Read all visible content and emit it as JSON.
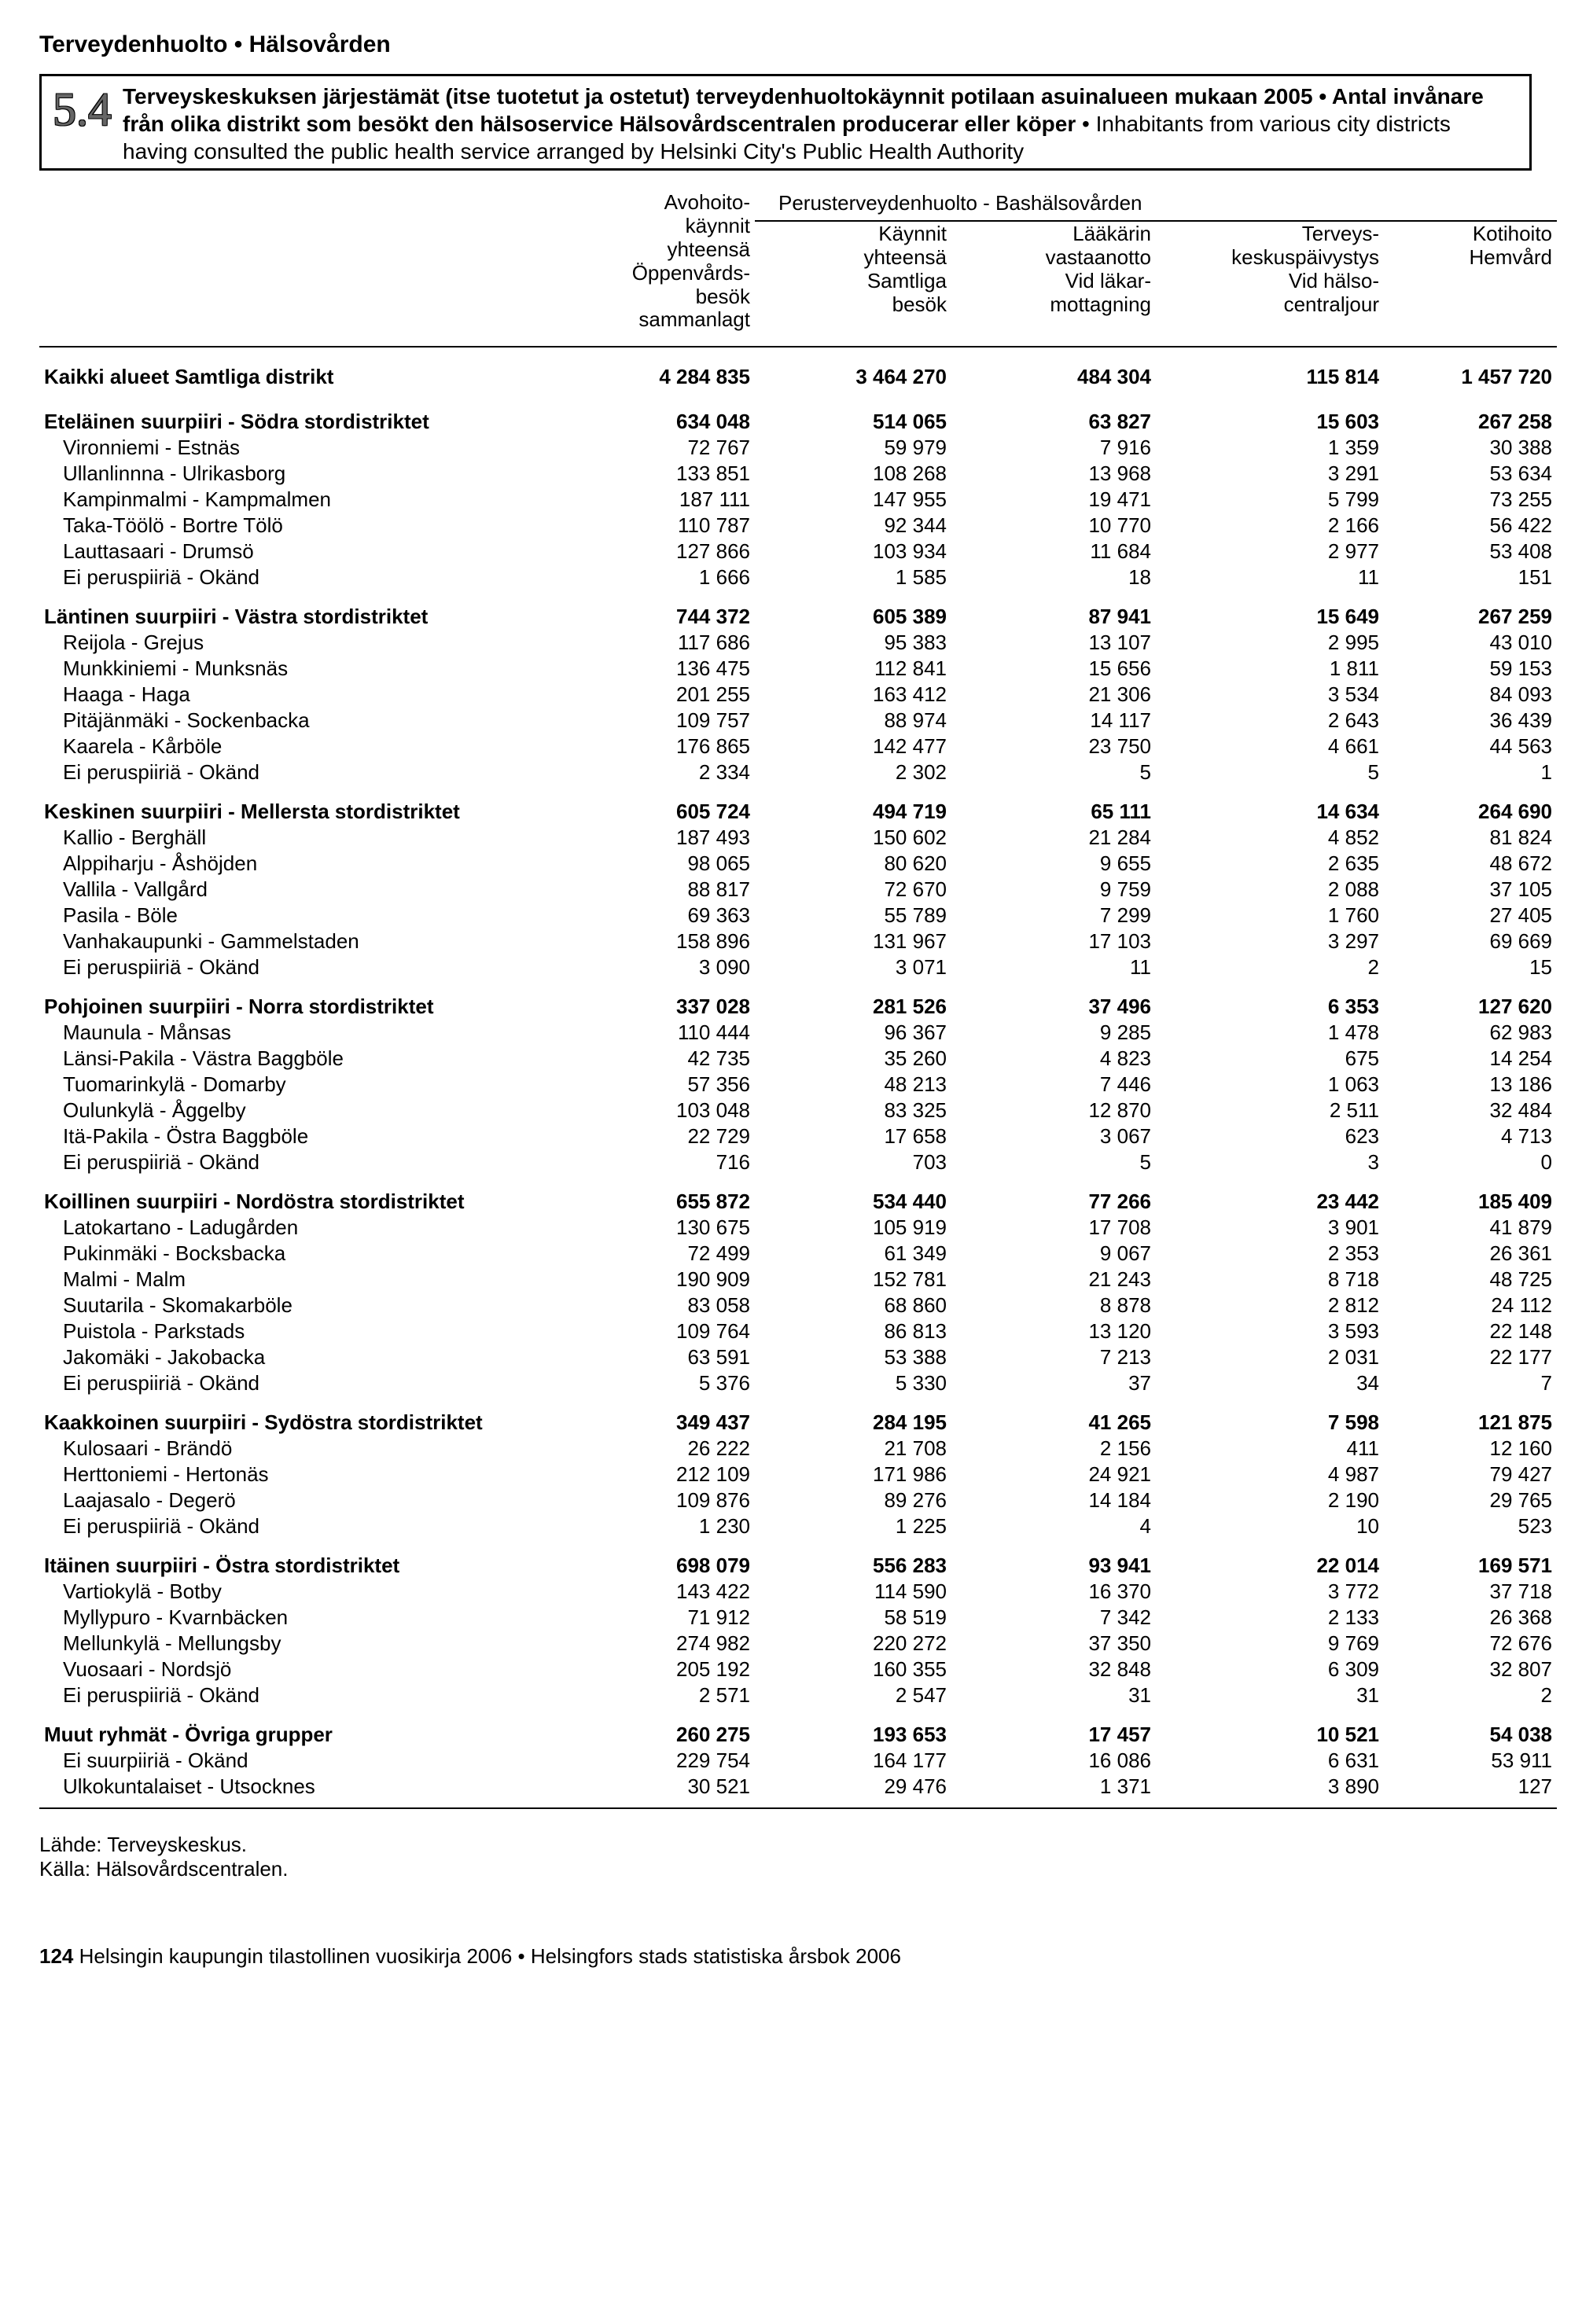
{
  "page": {
    "header": "Terveydenhuolto • Hälsovården",
    "section_number": "5.4",
    "title_bold1": "Terveyskeskuksen järjestämät (itse tuotetut ja ostetut) terveydenhuoltokäynnit potilaan asuinalueen mukaan 2005",
    "title_bold2": "Antal invånare från olika distrikt som besökt den hälsoservice Hälsovårdscentralen producerar eller köper",
    "title_plain": "Inhabitants from various city districts having consulted the public health service arranged by Helsinki City's Public Health Authority",
    "source_fi": "Lähde: Terveyskeskus.",
    "source_sv": "Källa: Hälsovårdscentralen.",
    "footer_page": "124",
    "footer_text": "Helsingin kaupungin tilastollinen vuosikirja 2006 • Helsingfors stads statistiska årsbok 2006"
  },
  "columns": {
    "c1": "Avohoito-\nkäynnit\nyhteensä\nÖppenvårds-\nbesök\nsammanlagt",
    "span": "Perusterveydenhuolto - Bashälsovården",
    "c2": "Käynnit\nyhteensä\nSamtliga\nbesök",
    "c3": "Lääkärin\nvastaanotto\nVid läkar-\nmottagning",
    "c4": "Terveys-\nkeskuspäivystys\nVid hälso-\ncentraljour",
    "c5": "Kotihoito\nHemvård"
  },
  "total": {
    "label": "Kaikki alueet Samtliga distrikt",
    "v": [
      "4 284 835",
      "3 464 270",
      "484 304",
      "115 814",
      "1 457 720"
    ]
  },
  "groups": [
    {
      "label": "Eteläinen suurpiiri - Södra stordistriktet",
      "v": [
        "634 048",
        "514 065",
        "63 827",
        "15 603",
        "267 258"
      ],
      "rows": [
        {
          "label": "Vironniemi - Estnäs",
          "v": [
            "72 767",
            "59 979",
            "7 916",
            "1 359",
            "30 388"
          ]
        },
        {
          "label": "Ullanlinnna - Ulrikasborg",
          "v": [
            "133 851",
            "108 268",
            "13 968",
            "3 291",
            "53 634"
          ]
        },
        {
          "label": "Kampinmalmi - Kampmalmen",
          "v": [
            "187 111",
            "147 955",
            "19 471",
            "5 799",
            "73 255"
          ]
        },
        {
          "label": "Taka-Töölö - Bortre Tölö",
          "v": [
            "110 787",
            "92 344",
            "10 770",
            "2 166",
            "56 422"
          ]
        },
        {
          "label": "Lauttasaari - Drumsö",
          "v": [
            "127 866",
            "103 934",
            "11 684",
            "2 977",
            "53 408"
          ]
        },
        {
          "label": "Ei peruspiiriä - Okänd",
          "v": [
            "1 666",
            "1 585",
            "18",
            "11",
            "151"
          ]
        }
      ]
    },
    {
      "label": "Läntinen suurpiiri - Västra stordistriktet",
      "v": [
        "744 372",
        "605 389",
        "87 941",
        "15 649",
        "267 259"
      ],
      "rows": [
        {
          "label": "Reijola - Grejus",
          "v": [
            "117 686",
            "95 383",
            "13 107",
            "2 995",
            "43 010"
          ]
        },
        {
          "label": "Munkkiniemi - Munksnäs",
          "v": [
            "136 475",
            "112 841",
            "15 656",
            "1 811",
            "59 153"
          ]
        },
        {
          "label": "Haaga - Haga",
          "v": [
            "201 255",
            "163 412",
            "21 306",
            "3 534",
            "84 093"
          ]
        },
        {
          "label": "Pitäjänmäki - Sockenbacka",
          "v": [
            "109 757",
            "88 974",
            "14 117",
            "2 643",
            "36 439"
          ]
        },
        {
          "label": "Kaarela - Kårböle",
          "v": [
            "176 865",
            "142 477",
            "23 750",
            "4 661",
            "44 563"
          ]
        },
        {
          "label": "Ei peruspiiriä - Okänd",
          "v": [
            "2 334",
            "2 302",
            "5",
            "5",
            "1"
          ]
        }
      ]
    },
    {
      "label": "Keskinen suurpiiri - Mellersta stordistriktet",
      "v": [
        "605 724",
        "494 719",
        "65 111",
        "14 634",
        "264 690"
      ],
      "rows": [
        {
          "label": "Kallio - Berghäll",
          "v": [
            "187 493",
            "150 602",
            "21 284",
            "4 852",
            "81 824"
          ]
        },
        {
          "label": "Alppiharju - Åshöjden",
          "v": [
            "98 065",
            "80 620",
            "9 655",
            "2 635",
            "48 672"
          ]
        },
        {
          "label": "Vallila - Vallgård",
          "v": [
            "88 817",
            "72 670",
            "9 759",
            "2 088",
            "37 105"
          ]
        },
        {
          "label": "Pasila - Böle",
          "v": [
            "69 363",
            "55 789",
            "7 299",
            "1 760",
            "27 405"
          ]
        },
        {
          "label": "Vanhakaupunki - Gammelstaden",
          "v": [
            "158 896",
            "131 967",
            "17 103",
            "3 297",
            "69 669"
          ]
        },
        {
          "label": "Ei peruspiiriä - Okänd",
          "v": [
            "3 090",
            "3 071",
            "11",
            "2",
            "15"
          ]
        }
      ]
    },
    {
      "label": "Pohjoinen suurpiiri - Norra stordistriktet",
      "v": [
        "337 028",
        "281 526",
        "37 496",
        "6 353",
        "127 620"
      ],
      "rows": [
        {
          "label": "Maunula - Månsas",
          "v": [
            "110 444",
            "96 367",
            "9 285",
            "1 478",
            "62 983"
          ]
        },
        {
          "label": "Länsi-Pakila - Västra Baggböle",
          "v": [
            "42 735",
            "35 260",
            "4 823",
            "675",
            "14 254"
          ]
        },
        {
          "label": "Tuomarinkylä - Domarby",
          "v": [
            "57 356",
            "48 213",
            "7 446",
            "1 063",
            "13 186"
          ]
        },
        {
          "label": "Oulunkylä - Åggelby",
          "v": [
            "103 048",
            "83 325",
            "12 870",
            "2 511",
            "32 484"
          ]
        },
        {
          "label": "Itä-Pakila - Östra Baggböle",
          "v": [
            "22 729",
            "17 658",
            "3 067",
            "623",
            "4 713"
          ]
        },
        {
          "label": "Ei peruspiiriä - Okänd",
          "v": [
            "716",
            "703",
            "5",
            "3",
            "0"
          ]
        }
      ]
    },
    {
      "label": "Koillinen suurpiiri - Nordöstra stordistriktet",
      "v": [
        "655 872",
        "534 440",
        "77 266",
        "23 442",
        "185 409"
      ],
      "rows": [
        {
          "label": "Latokartano - Ladugården",
          "v": [
            "130 675",
            "105 919",
            "17 708",
            "3 901",
            "41 879"
          ]
        },
        {
          "label": "Pukinmäki - Bocksbacka",
          "v": [
            "72 499",
            "61 349",
            "9 067",
            "2 353",
            "26 361"
          ]
        },
        {
          "label": "Malmi - Malm",
          "v": [
            "190 909",
            "152 781",
            "21 243",
            "8 718",
            "48 725"
          ]
        },
        {
          "label": "Suutarila - Skomakarböle",
          "v": [
            "83 058",
            "68 860",
            "8 878",
            "2 812",
            "24 112"
          ]
        },
        {
          "label": "Puistola - Parkstads",
          "v": [
            "109 764",
            "86 813",
            "13 120",
            "3 593",
            "22 148"
          ]
        },
        {
          "label": "Jakomäki - Jakobacka",
          "v": [
            "63 591",
            "53 388",
            "7 213",
            "2 031",
            "22 177"
          ]
        },
        {
          "label": "Ei peruspiiriä - Okänd",
          "v": [
            "5 376",
            "5 330",
            "37",
            "34",
            "7"
          ]
        }
      ]
    },
    {
      "label": "Kaakkoinen suurpiiri - Sydöstra stordistriktet",
      "v": [
        "349 437",
        "284 195",
        "41 265",
        "7 598",
        "121 875"
      ],
      "rows": [
        {
          "label": "Kulosaari - Brändö",
          "v": [
            "26 222",
            "21 708",
            "2 156",
            "411",
            "12 160"
          ]
        },
        {
          "label": "Herttoniemi - Hertonäs",
          "v": [
            "212 109",
            "171 986",
            "24 921",
            "4 987",
            "79 427"
          ]
        },
        {
          "label": "Laajasalo - Degerö",
          "v": [
            "109 876",
            "89 276",
            "14 184",
            "2 190",
            "29 765"
          ]
        },
        {
          "label": "Ei peruspiiriä - Okänd",
          "v": [
            "1 230",
            "1 225",
            "4",
            "10",
            "523"
          ]
        }
      ]
    },
    {
      "label": "Itäinen suurpiiri - Östra stordistriktet",
      "v": [
        "698 079",
        "556 283",
        "93 941",
        "22 014",
        "169 571"
      ],
      "rows": [
        {
          "label": "Vartiokylä - Botby",
          "v": [
            "143 422",
            "114 590",
            "16 370",
            "3 772",
            "37 718"
          ]
        },
        {
          "label": "Myllypuro - Kvarnbäcken",
          "v": [
            "71 912",
            "58 519",
            "7 342",
            "2 133",
            "26 368"
          ]
        },
        {
          "label": "Mellunkylä - Mellungsby",
          "v": [
            "274 982",
            "220 272",
            "37 350",
            "9 769",
            "72 676"
          ]
        },
        {
          "label": "Vuosaari - Nordsjö",
          "v": [
            "205 192",
            "160 355",
            "32 848",
            "6 309",
            "32 807"
          ]
        },
        {
          "label": "Ei peruspiiriä - Okänd",
          "v": [
            "2 571",
            "2 547",
            "31",
            "31",
            "2"
          ]
        }
      ]
    },
    {
      "label": "Muut ryhmät - Övriga grupper",
      "v": [
        "260 275",
        "193 653",
        "17 457",
        "10 521",
        "54 038"
      ],
      "rows": [
        {
          "label": "Ei suurpiiriä - Okänd",
          "v": [
            "229 754",
            "164 177",
            "16 086",
            "6 631",
            "53 911"
          ]
        },
        {
          "label": "Ulkokuntalaiset - Utsocknes",
          "v": [
            "30 521",
            "29 476",
            "1 371",
            "3 890",
            "127"
          ]
        }
      ]
    }
  ]
}
